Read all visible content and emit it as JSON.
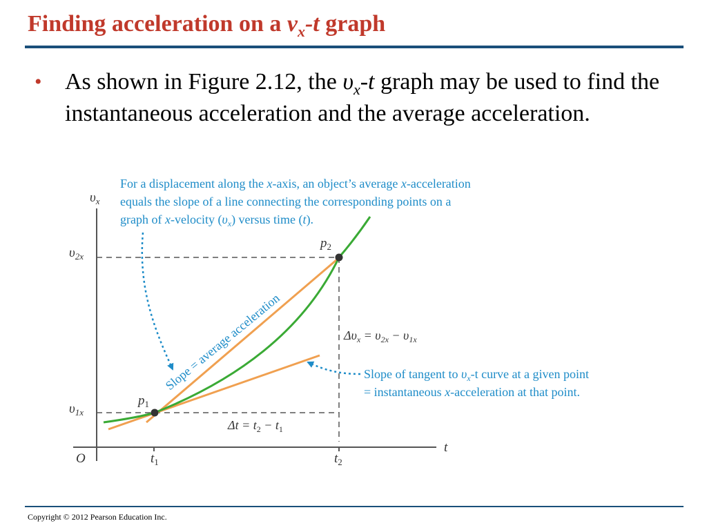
{
  "slide": {
    "title_text": "Finding acceleration on a ",
    "title_v": "v",
    "title_sub_x": "x",
    "title_dash_t": "-t",
    "title_end": " graph",
    "bullet_glyph": "•",
    "bullet_before": "As shown in Figure 2.12, the ",
    "bullet_v": "υ",
    "bullet_sub_x": "x",
    "bullet_dash_t": "-t",
    "bullet_after": " graph may be used to find the instantaneous acceleration and the average acceleration.",
    "copyright": "Copyright © 2012 Pearson Education Inc."
  },
  "diagram": {
    "axis_y": {
      "main": "υ",
      "sub": "x"
    },
    "axis_x": "t",
    "origin": "O",
    "t1": {
      "main": "t",
      "sub": "1"
    },
    "t2": {
      "main": "t",
      "sub": "2"
    },
    "v1x": {
      "main": "υ",
      "sub": "1x"
    },
    "v2x": {
      "main": "υ",
      "sub": "2x"
    },
    "p1": {
      "main": "p",
      "sub": "1"
    },
    "p2": {
      "main": "p",
      "sub": "2"
    },
    "delta_vx": {
      "a": "Δυ",
      "a_sub": "x",
      "b": " = υ",
      "b_sub": "2x",
      "c": " − υ",
      "c_sub": "1x"
    },
    "delta_t": {
      "a": "Δt = t",
      "a_sub": "2",
      "b": " − t",
      "b_sub": "1"
    },
    "slope_label": "Slope = average acceleration",
    "caption_top": {
      "line1_a": "For a displacement along the ",
      "line1_x": "x",
      "line1_b": "-axis, an object’s average ",
      "line1_x2": "x",
      "line1_c": "-acceleration",
      "line2": "equals the slope of a line connecting the corresponding points on a",
      "line3_a": "graph of ",
      "line3_x": "x",
      "line3_b": "-velocity (",
      "line3_v": "υ",
      "line3_vsub": "x",
      "line3_c": ") versus time (",
      "line3_t": "t",
      "line3_d": ")."
    },
    "caption_tangent": {
      "line1_a": "Slope of tangent to ",
      "line1_v": "υ",
      "line1_vsub": "x",
      "line1_b": "-t curve at a given point",
      "line2_a": "= instantaneous ",
      "line2_x": "x",
      "line2_b": "-acceleration at that point."
    },
    "colors": {
      "curve": "#3aaa35",
      "lines": "#f0a050",
      "annotation": "#1e8cc8",
      "axes": "#555555",
      "points": "#333333"
    }
  }
}
